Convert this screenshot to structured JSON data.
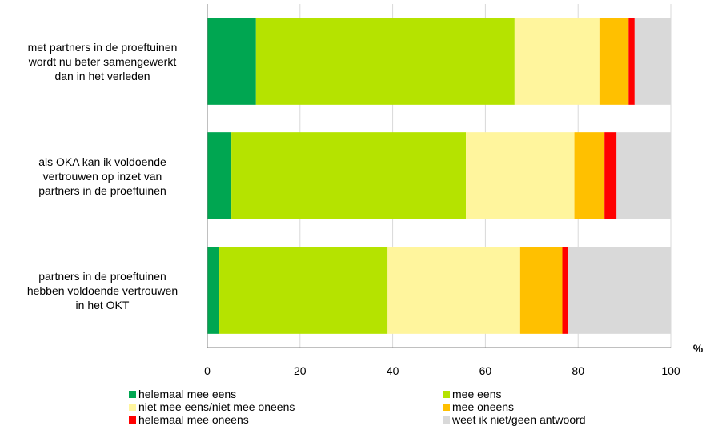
{
  "chart_data": {
    "type": "bar",
    "orientation": "horizontal",
    "stacked": true,
    "categories": [
      [
        "met partners in de proeftuinen",
        "wordt nu beter samengewerkt",
        "dan in het verleden"
      ],
      [
        "als OKA kan ik voldoende",
        "vertrouwen op inzet van",
        "partners in de proeftuinen"
      ],
      [
        "partners in de proeftuinen",
        "hebben voldoende vertrouwen",
        "in het OKT"
      ]
    ],
    "series": [
      {
        "name": "helemaal mee eens",
        "color": "#00a651",
        "values": [
          10.5,
          5.2,
          2.6
        ]
      },
      {
        "name": "mee eens",
        "color": "#b5e300",
        "values": [
          55.8,
          50.6,
          36.3
        ]
      },
      {
        "name": "niet mee eens/niet mee oneens",
        "color": "#fff59d",
        "values": [
          18.3,
          23.4,
          28.6
        ]
      },
      {
        "name": "mee oneens",
        "color": "#ffc000",
        "values": [
          6.3,
          6.5,
          9.1
        ]
      },
      {
        "name": "helemaal mee oneens",
        "color": "#ff0000",
        "values": [
          1.3,
          2.6,
          1.3
        ]
      },
      {
        "name": "weet ik niet/geen antwoord",
        "color": "#d9d9d9",
        "values": [
          7.8,
          11.7,
          22.1
        ]
      }
    ],
    "xlabel": "%",
    "xlim": [
      0,
      100
    ],
    "xticks": [
      "0",
      "20",
      "40",
      "60",
      "80",
      "100"
    ],
    "grid": true,
    "legend": "bottom"
  }
}
